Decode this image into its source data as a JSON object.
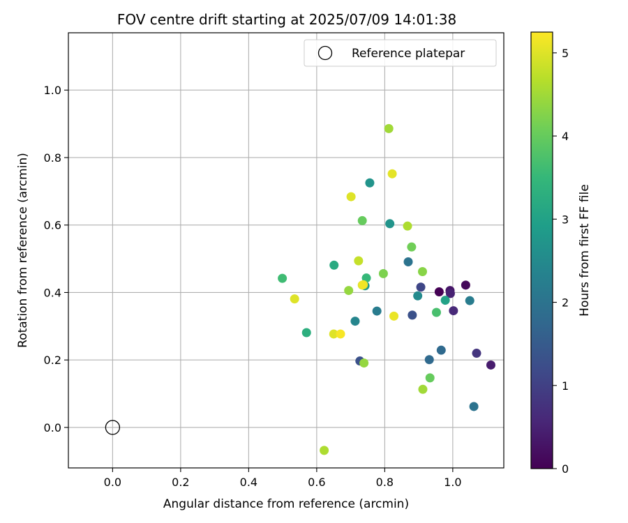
{
  "chart_data": {
    "type": "scatter",
    "title": "FOV centre drift starting at 2025/07/09 14:01:38",
    "xlabel": "Angular distance from reference (arcmin)",
    "ylabel": "Rotation from reference (arcmin)",
    "xlim": [
      -0.13,
      1.15
    ],
    "ylim": [
      -0.12,
      1.17
    ],
    "x_ticks": [
      "0.0",
      "0.2",
      "0.4",
      "0.6",
      "0.8",
      "1.0"
    ],
    "x_tick_values": [
      0.0,
      0.2,
      0.4,
      0.6,
      0.8,
      1.0
    ],
    "y_ticks": [
      "0.0",
      "0.2",
      "0.4",
      "0.6",
      "0.8",
      "1.0"
    ],
    "y_tick_values": [
      0.0,
      0.2,
      0.4,
      0.6,
      0.8,
      1.0
    ],
    "grid": true,
    "colormap": "viridis",
    "colorbar": {
      "label": "Hours from first FF file",
      "range": [
        0,
        5.25
      ],
      "ticks": [
        "0",
        "1",
        "2",
        "3",
        "4",
        "5"
      ],
      "tick_values": [
        0,
        1,
        2,
        3,
        4,
        5
      ]
    },
    "legend": {
      "placement": "top-right",
      "entries": [
        {
          "label": "Reference platepar",
          "marker": "open-circle"
        }
      ]
    },
    "reference_point": {
      "x": 0.0,
      "y": 0.0
    },
    "points": [
      {
        "x": 0.96,
        "y": 0.402,
        "c": 0.0
      },
      {
        "x": 1.038,
        "y": 0.422,
        "c": 0.1
      },
      {
        "x": 0.992,
        "y": 0.406,
        "c": 0.3
      },
      {
        "x": 0.993,
        "y": 0.397,
        "c": 0.5
      },
      {
        "x": 1.112,
        "y": 0.185,
        "c": 0.4
      },
      {
        "x": 1.002,
        "y": 0.346,
        "c": 0.6
      },
      {
        "x": 1.07,
        "y": 0.22,
        "c": 0.8
      },
      {
        "x": 0.906,
        "y": 0.416,
        "c": 1.1
      },
      {
        "x": 0.727,
        "y": 0.197,
        "c": 1.3
      },
      {
        "x": 0.881,
        "y": 0.333,
        "c": 1.3
      },
      {
        "x": 0.931,
        "y": 0.201,
        "c": 1.8
      },
      {
        "x": 0.966,
        "y": 0.229,
        "c": 1.8
      },
      {
        "x": 0.869,
        "y": 0.491,
        "c": 2.0
      },
      {
        "x": 1.062,
        "y": 0.062,
        "c": 2.0
      },
      {
        "x": 1.05,
        "y": 0.376,
        "c": 2.2
      },
      {
        "x": 0.777,
        "y": 0.345,
        "c": 2.2
      },
      {
        "x": 0.713,
        "y": 0.315,
        "c": 2.4
      },
      {
        "x": 0.897,
        "y": 0.39,
        "c": 2.5
      },
      {
        "x": 0.756,
        "y": 0.725,
        "c": 2.7
      },
      {
        "x": 0.815,
        "y": 0.604,
        "c": 2.7
      },
      {
        "x": 0.742,
        "y": 0.42,
        "c": 2.8
      },
      {
        "x": 0.978,
        "y": 0.377,
        "c": 3.0
      },
      {
        "x": 0.651,
        "y": 0.481,
        "c": 3.2
      },
      {
        "x": 0.57,
        "y": 0.281,
        "c": 3.3
      },
      {
        "x": 0.746,
        "y": 0.443,
        "c": 3.5
      },
      {
        "x": 0.499,
        "y": 0.442,
        "c": 3.6
      },
      {
        "x": 0.952,
        "y": 0.341,
        "c": 3.7
      },
      {
        "x": 0.734,
        "y": 0.613,
        "c": 4.0
      },
      {
        "x": 0.933,
        "y": 0.147,
        "c": 4.0
      },
      {
        "x": 0.879,
        "y": 0.535,
        "c": 4.1
      },
      {
        "x": 0.796,
        "y": 0.456,
        "c": 4.2
      },
      {
        "x": 0.911,
        "y": 0.462,
        "c": 4.3
      },
      {
        "x": 0.694,
        "y": 0.406,
        "c": 4.4
      },
      {
        "x": 0.739,
        "y": 0.191,
        "c": 4.4
      },
      {
        "x": 0.912,
        "y": 0.113,
        "c": 4.5
      },
      {
        "x": 0.812,
        "y": 0.886,
        "c": 4.5
      },
      {
        "x": 0.867,
        "y": 0.597,
        "c": 4.6
      },
      {
        "x": 0.622,
        "y": -0.068,
        "c": 4.6
      },
      {
        "x": 0.723,
        "y": 0.494,
        "c": 4.8
      },
      {
        "x": 0.701,
        "y": 0.684,
        "c": 5.0
      },
      {
        "x": 0.734,
        "y": 0.422,
        "c": 5.0
      },
      {
        "x": 0.535,
        "y": 0.381,
        "c": 5.0
      },
      {
        "x": 0.65,
        "y": 0.277,
        "c": 5.0
      },
      {
        "x": 0.822,
        "y": 0.752,
        "c": 5.05
      },
      {
        "x": 0.827,
        "y": 0.33,
        "c": 5.1
      },
      {
        "x": 0.737,
        "y": 0.423,
        "c": 5.15
      },
      {
        "x": 0.67,
        "y": 0.277,
        "c": 5.2
      }
    ]
  }
}
